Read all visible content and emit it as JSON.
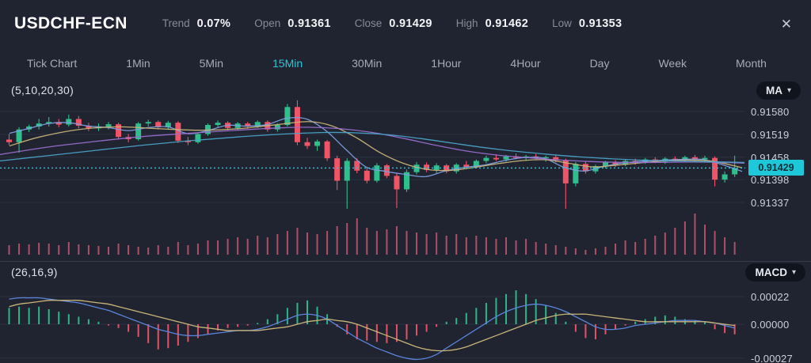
{
  "header": {
    "title": "USDCHF-ECN",
    "stats": [
      {
        "label": "Trend",
        "value": "0.07%"
      },
      {
        "label": "Open",
        "value": "0.91361"
      },
      {
        "label": "Close",
        "value": "0.91429"
      },
      {
        "label": "High",
        "value": "0.91462"
      },
      {
        "label": "Low",
        "value": "0.91353"
      }
    ]
  },
  "icons": {
    "close": "✕",
    "caret_down": "▾"
  },
  "tabs": [
    {
      "label": "Tick Chart",
      "active": false
    },
    {
      "label": "1Min",
      "active": false
    },
    {
      "label": "5Min",
      "active": false
    },
    {
      "label": "15Min",
      "active": true
    },
    {
      "label": "30Min",
      "active": false
    },
    {
      "label": "1Hour",
      "active": false
    },
    {
      "label": "4Hour",
      "active": false
    },
    {
      "label": "Day",
      "active": false
    },
    {
      "label": "Week",
      "active": false
    },
    {
      "label": "Month",
      "active": false
    }
  ],
  "price_pane": {
    "indicator_label": "(5,10,20,30)",
    "selector_label": "MA",
    "axis_labels": [
      "0.91580",
      "0.91519",
      "0.91458",
      "0.91398",
      "0.91337"
    ],
    "current_price": "0.91429"
  },
  "macd_pane": {
    "indicator_label": "(26,16,9)",
    "selector_label": "MACD",
    "axis_labels": [
      "0.00022",
      "0.00000",
      "-0.00027"
    ]
  },
  "colors": {
    "up": "#2fbe8c",
    "down": "#ef5467",
    "volume": "#c2576d",
    "accent": "#2bc7d8",
    "grid": "#2c3140",
    "separator": "#363c4b",
    "macd_line": "#5b84dc",
    "signal_line": "#c9b478"
  },
  "chart_data": {
    "type": "candlestick",
    "title": "USDCHF-ECN",
    "interval": "15Min",
    "trend_pct": 0.07,
    "open": 0.91361,
    "close": 0.91429,
    "high": 0.91462,
    "low": 0.91353,
    "current_price": 0.91429,
    "price_axis": {
      "ticks": [
        0.9158,
        0.91519,
        0.91458,
        0.91398,
        0.91337
      ]
    },
    "candles": [
      [
        0.91505,
        0.9152,
        0.9149,
        0.91498
      ],
      [
        0.91498,
        0.91538,
        0.9147,
        0.91532
      ],
      [
        0.91532,
        0.91545,
        0.91525,
        0.9154
      ],
      [
        0.9154,
        0.9156,
        0.91532,
        0.91548
      ],
      [
        0.91548,
        0.91565,
        0.9154,
        0.91552
      ],
      [
        0.91552,
        0.9156,
        0.91538,
        0.91545
      ],
      [
        0.91545,
        0.91572,
        0.9154,
        0.9156
      ],
      [
        0.9156,
        0.91568,
        0.91535,
        0.91542
      ],
      [
        0.91542,
        0.9155,
        0.91528,
        0.91535
      ],
      [
        0.91535,
        0.91548,
        0.91528,
        0.9154
      ],
      [
        0.9154,
        0.91552,
        0.91532,
        0.91546
      ],
      [
        0.91546,
        0.9155,
        0.91505,
        0.91512
      ],
      [
        0.91512,
        0.9152,
        0.91498,
        0.91506
      ],
      [
        0.91506,
        0.91552,
        0.91502,
        0.91548
      ],
      [
        0.91548,
        0.91558,
        0.9154,
        0.91552
      ],
      [
        0.91552,
        0.91556,
        0.91532,
        0.91538
      ],
      [
        0.91538,
        0.91555,
        0.91532,
        0.9155
      ],
      [
        0.9155,
        0.91554,
        0.91496,
        0.91502
      ],
      [
        0.91502,
        0.91512,
        0.9149,
        0.91498
      ],
      [
        0.91498,
        0.91525,
        0.91494,
        0.9152
      ],
      [
        0.9152,
        0.91548,
        0.91515,
        0.91544
      ],
      [
        0.91544,
        0.91556,
        0.91538,
        0.9155
      ],
      [
        0.9155,
        0.91554,
        0.9153,
        0.91536
      ],
      [
        0.91536,
        0.91552,
        0.9153,
        0.91548
      ],
      [
        0.91548,
        0.91552,
        0.91534,
        0.9154
      ],
      [
        0.9154,
        0.91556,
        0.91536,
        0.91552
      ],
      [
        0.91552,
        0.91556,
        0.91526,
        0.91532
      ],
      [
        0.91532,
        0.91548,
        0.91526,
        0.91544
      ],
      [
        0.91544,
        0.916,
        0.9154,
        0.91592
      ],
      [
        0.91592,
        0.9161,
        0.9149,
        0.91498
      ],
      [
        0.91498,
        0.9151,
        0.9148,
        0.91488
      ],
      [
        0.91488,
        0.91505,
        0.91475,
        0.915
      ],
      [
        0.915,
        0.91504,
        0.91448,
        0.91455
      ],
      [
        0.91455,
        0.91462,
        0.9137,
        0.91395
      ],
      [
        0.91395,
        0.91455,
        0.9132,
        0.91448
      ],
      [
        0.91448,
        0.91455,
        0.91415,
        0.91422
      ],
      [
        0.91422,
        0.9143,
        0.91388,
        0.91395
      ],
      [
        0.91395,
        0.91442,
        0.9139,
        0.91436
      ],
      [
        0.91436,
        0.9144,
        0.91402,
        0.91408
      ],
      [
        0.91408,
        0.91415,
        0.91322,
        0.91372
      ],
      [
        0.91372,
        0.91425,
        0.91365,
        0.91418
      ],
      [
        0.91418,
        0.91445,
        0.91412,
        0.91438
      ],
      [
        0.91438,
        0.91444,
        0.91418,
        0.91424
      ],
      [
        0.91424,
        0.91442,
        0.91416,
        0.91436
      ],
      [
        0.91436,
        0.9144,
        0.91415,
        0.9142
      ],
      [
        0.9142,
        0.91442,
        0.91414,
        0.91438
      ],
      [
        0.91438,
        0.91448,
        0.91426,
        0.91432
      ],
      [
        0.91432,
        0.91452,
        0.91428,
        0.91448
      ],
      [
        0.91448,
        0.91462,
        0.91442,
        0.91456
      ],
      [
        0.91456,
        0.91466,
        0.91448,
        0.91452
      ],
      [
        0.91452,
        0.91464,
        0.91446,
        0.9146
      ],
      [
        0.9146,
        0.91468,
        0.91452,
        0.91456
      ],
      [
        0.91456,
        0.91464,
        0.91448,
        0.9146
      ],
      [
        0.9146,
        0.91466,
        0.9145,
        0.91455
      ],
      [
        0.91455,
        0.91462,
        0.91446,
        0.91458
      ],
      [
        0.91458,
        0.91464,
        0.91444,
        0.9145
      ],
      [
        0.9145,
        0.91454,
        0.9132,
        0.91388
      ],
      [
        0.91388,
        0.91445,
        0.9138,
        0.9144
      ],
      [
        0.9144,
        0.91446,
        0.91414,
        0.9142
      ],
      [
        0.9142,
        0.91438,
        0.91414,
        0.91434
      ],
      [
        0.91434,
        0.91448,
        0.91428,
        0.91444
      ],
      [
        0.91444,
        0.9145,
        0.91432,
        0.91438
      ],
      [
        0.91438,
        0.91452,
        0.91434,
        0.91448
      ],
      [
        0.91448,
        0.91454,
        0.91438,
        0.91444
      ],
      [
        0.91444,
        0.91456,
        0.9144,
        0.91452
      ],
      [
        0.91452,
        0.91458,
        0.91442,
        0.91446
      ],
      [
        0.91446,
        0.91458,
        0.9144,
        0.91454
      ],
      [
        0.91454,
        0.9146,
        0.91446,
        0.9145
      ],
      [
        0.9145,
        0.91462,
        0.91444,
        0.91458
      ],
      [
        0.91458,
        0.91464,
        0.91448,
        0.91452
      ],
      [
        0.91452,
        0.91462,
        0.91444,
        0.91456
      ],
      [
        0.91456,
        0.9146,
        0.9138,
        0.91398
      ],
      [
        0.91398,
        0.9142,
        0.9139,
        0.91412
      ],
      [
        0.91412,
        0.91462,
        0.91405,
        0.91429
      ]
    ],
    "volume": [
      12,
      14,
      13,
      15,
      14,
      12,
      16,
      13,
      12,
      11,
      10,
      14,
      12,
      10,
      9,
      12,
      10,
      16,
      12,
      14,
      18,
      18,
      20,
      22,
      20,
      24,
      22,
      26,
      30,
      34,
      28,
      26,
      30,
      36,
      40,
      46,
      34,
      30,
      32,
      36,
      30,
      28,
      26,
      28,
      24,
      26,
      22,
      24,
      22,
      20,
      22,
      18,
      20,
      16,
      14,
      12,
      10,
      8,
      6,
      8,
      10,
      14,
      18,
      16,
      20,
      24,
      28,
      34,
      42,
      52,
      38,
      30,
      22,
      16
    ],
    "ma_lines": [
      {
        "name": "MA5",
        "color": "#7d9fe0",
        "points": [
          [
            12,
            0.91522
          ],
          [
            37,
            0.91535
          ],
          [
            62,
            0.91548
          ],
          [
            87,
            0.9155
          ],
          [
            112,
            0.91541
          ],
          [
            137,
            0.91537
          ],
          [
            162,
            0.91529
          ],
          [
            187,
            0.91537
          ],
          [
            212,
            0.91539
          ],
          [
            237,
            0.91521
          ],
          [
            262,
            0.91529
          ],
          [
            287,
            0.91543
          ],
          [
            312,
            0.91541
          ],
          [
            337,
            0.91545
          ],
          [
            362,
            0.91562
          ],
          [
            387,
            0.9156
          ],
          [
            412,
            0.91528
          ],
          [
            437,
            0.91478
          ],
          [
            462,
            0.91432
          ],
          [
            487,
            0.9142
          ],
          [
            512,
            0.91412
          ],
          [
            537,
            0.91406
          ],
          [
            562,
            0.91421
          ],
          [
            587,
            0.91431
          ],
          [
            612,
            0.91437
          ],
          [
            637,
            0.91449
          ],
          [
            662,
            0.91457
          ],
          [
            687,
            0.91455
          ],
          [
            712,
            0.91431
          ],
          [
            737,
            0.91421
          ],
          [
            762,
            0.91433
          ],
          [
            787,
            0.91443
          ],
          [
            812,
            0.91447
          ],
          [
            837,
            0.9145
          ],
          [
            862,
            0.91452
          ],
          [
            887,
            0.91452
          ],
          [
            912,
            0.91438
          ],
          [
            937,
            0.9142
          ]
        ]
      },
      {
        "name": "MA10",
        "color": "#c9b478",
        "points": [
          [
            12,
            0.91488
          ],
          [
            50,
            0.91512
          ],
          [
            100,
            0.91532
          ],
          [
            150,
            0.91539
          ],
          [
            200,
            0.91534
          ],
          [
            250,
            0.9153
          ],
          [
            300,
            0.91534
          ],
          [
            350,
            0.91545
          ],
          [
            390,
            0.91553
          ],
          [
            420,
            0.91541
          ],
          [
            450,
            0.9151
          ],
          [
            480,
            0.9147
          ],
          [
            510,
            0.91441
          ],
          [
            540,
            0.91425
          ],
          [
            570,
            0.91423
          ],
          [
            600,
            0.91431
          ],
          [
            630,
            0.91441
          ],
          [
            660,
            0.91449
          ],
          [
            690,
            0.91451
          ],
          [
            720,
            0.91441
          ],
          [
            750,
            0.91432
          ],
          [
            780,
            0.91437
          ],
          [
            810,
            0.91443
          ],
          [
            840,
            0.91448
          ],
          [
            870,
            0.9145
          ],
          [
            900,
            0.91447
          ],
          [
            937,
            0.9143
          ]
        ]
      },
      {
        "name": "MA20",
        "color": "#9a6fd0",
        "points": [
          [
            0,
            0.91465
          ],
          [
            60,
            0.91485
          ],
          [
            120,
            0.915
          ],
          [
            180,
            0.91513
          ],
          [
            240,
            0.91522
          ],
          [
            300,
            0.9153
          ],
          [
            350,
            0.91536
          ],
          [
            390,
            0.91538
          ],
          [
            430,
            0.91534
          ],
          [
            470,
            0.91524
          ],
          [
            510,
            0.91508
          ],
          [
            550,
            0.9149
          ],
          [
            590,
            0.91474
          ],
          [
            630,
            0.91463
          ],
          [
            670,
            0.91456
          ],
          [
            710,
            0.9145
          ],
          [
            750,
            0.91446
          ],
          [
            790,
            0.91444
          ],
          [
            830,
            0.91444
          ],
          [
            870,
            0.91445
          ],
          [
            910,
            0.91444
          ],
          [
            940,
            0.91442
          ]
        ]
      },
      {
        "name": "MA30",
        "color": "#4aa3c8",
        "points": [
          [
            0,
            0.91448
          ],
          [
            60,
            0.91462
          ],
          [
            120,
            0.91476
          ],
          [
            180,
            0.9149
          ],
          [
            240,
            0.91502
          ],
          [
            300,
            0.91512
          ],
          [
            360,
            0.9152
          ],
          [
            410,
            0.91524
          ],
          [
            450,
            0.91523
          ],
          [
            490,
            0.91518
          ],
          [
            530,
            0.91508
          ],
          [
            570,
            0.91496
          ],
          [
            610,
            0.91484
          ],
          [
            650,
            0.91474
          ],
          [
            690,
            0.91466
          ],
          [
            730,
            0.91459
          ],
          [
            770,
            0.91454
          ],
          [
            810,
            0.9145
          ],
          [
            850,
            0.91448
          ],
          [
            890,
            0.91446
          ],
          [
            940,
            0.91444
          ]
        ]
      }
    ],
    "macd": {
      "params": [
        26,
        16,
        9
      ],
      "unit": 1e-05,
      "axis_ticks": [
        0.00022,
        0,
        -0.00027
      ],
      "hist": [
        13,
        14,
        13,
        14,
        12,
        10,
        8,
        6,
        4,
        2,
        -1,
        -3,
        -6,
        -10,
        -15,
        -20,
        -19,
        -17,
        -14,
        -11,
        -8,
        -5,
        -3,
        -2,
        -1,
        1,
        4,
        8,
        13,
        17,
        19,
        14,
        8,
        -2,
        -8,
        -12,
        -13,
        -14,
        -15,
        -14,
        -12,
        -9,
        -6,
        -2,
        2,
        5,
        9,
        13,
        17,
        21,
        24,
        27,
        24,
        20,
        15,
        9,
        2,
        -6,
        -11,
        -12,
        -8,
        -4,
        -1,
        2,
        4,
        6,
        7,
        6,
        4,
        3,
        2,
        -4,
        -7,
        -8
      ],
      "macd_line": [
        20,
        21,
        21,
        21,
        20,
        19,
        18,
        17,
        15,
        13,
        11,
        8,
        5,
        2,
        -1,
        -4,
        -6,
        -8,
        -9,
        -9,
        -8,
        -7,
        -6,
        -5,
        -5,
        -4,
        -2,
        1,
        4,
        7,
        8,
        7,
        4,
        -1,
        -6,
        -11,
        -15,
        -19,
        -22,
        -25,
        -27,
        -28,
        -27,
        -24,
        -19,
        -14,
        -9,
        -4,
        1,
        6,
        10,
        13,
        15,
        16,
        15,
        13,
        10,
        6,
        2,
        -2,
        -4,
        -4,
        -3,
        -1,
        0,
        1,
        2,
        3,
        3,
        3,
        2,
        1,
        -1,
        -3
      ],
      "signal_line": [
        14,
        16,
        17,
        18,
        19,
        19,
        19,
        19,
        18,
        17,
        16,
        14,
        12,
        10,
        8,
        6,
        4,
        2,
        0,
        -2,
        -3,
        -4,
        -5,
        -5,
        -5,
        -5,
        -4,
        -3,
        -2,
        0,
        2,
        3,
        4,
        3,
        2,
        0,
        -3,
        -6,
        -9,
        -12,
        -15,
        -18,
        -20,
        -21,
        -21,
        -20,
        -18,
        -15,
        -12,
        -9,
        -6,
        -3,
        0,
        3,
        5,
        7,
        8,
        8,
        8,
        7,
        6,
        5,
        4,
        3,
        2,
        2,
        2,
        2,
        2,
        2,
        2,
        1,
        0,
        -1
      ]
    }
  }
}
